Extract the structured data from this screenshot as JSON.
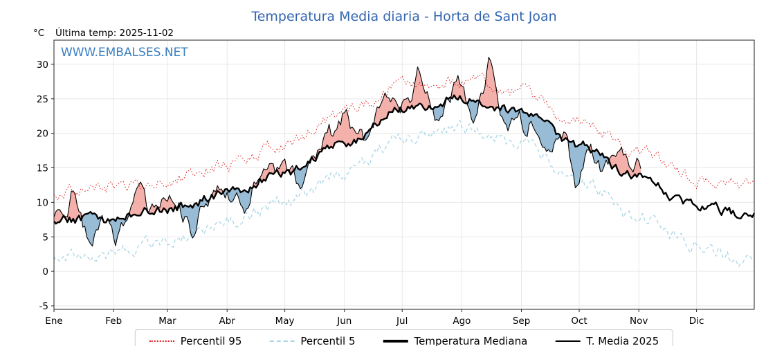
{
  "title": "Temperatura Media diaria - Horta de Sant Joan",
  "unit_label": "°C",
  "last_temp_label": "Última temp: 2025-11-02",
  "watermark": "WWW.EMBALSES.NET",
  "colors": {
    "title": "#3465b0",
    "watermark": "#3a7fc1",
    "p95": "#dd2222",
    "p5": "#a9d6e5",
    "median": "#000000",
    "t2025": "#000000",
    "fill_above": "#f3a7a1",
    "fill_below": "#8db4d2",
    "grid": "#e7e7e7",
    "axis": "#222222"
  },
  "chart_data": {
    "type": "line",
    "title": "Temperatura Media diaria - Horta de Sant Joan",
    "ylabel": "°C",
    "last_date": "2025-11-02",
    "ylim": [
      -5.5,
      33.5
    ],
    "yticks": [
      -5,
      0,
      5,
      10,
      15,
      20,
      25,
      30
    ],
    "ytick_labels": [
      "-5",
      "0",
      "5",
      "10",
      "15",
      "20",
      "25",
      "30"
    ],
    "x_tick_labels": [
      "Ene",
      "Feb",
      "Mar",
      "Abr",
      "May",
      "Jun",
      "Jul",
      "Ago",
      "Sep",
      "Oct",
      "Nov",
      "Dic"
    ],
    "month_start_days": [
      0,
      31,
      59,
      90,
      120,
      151,
      181,
      212,
      243,
      273,
      304,
      334,
      365
    ],
    "legend": [
      "Percentil 95",
      "Percentil 5",
      "Temperatura Mediana",
      "T. Media 2025"
    ],
    "legend_position": "bottom-center",
    "grid": true,
    "series": [
      {
        "name": "Percentil 95",
        "style": "dotted",
        "monthly_anchors": [
          11.5,
          12.0,
          13.3,
          15.3,
          18.3,
          22.8,
          27.0,
          27.6,
          26.2,
          22.0,
          17.3,
          13.3,
          12.3
        ],
        "noise_amp": 0.8,
        "noise_seed": 11
      },
      {
        "name": "Percentil 5",
        "style": "dashed",
        "monthly_anchors": [
          2.0,
          2.8,
          4.5,
          7.0,
          10.0,
          14.2,
          19.3,
          21.0,
          18.3,
          13.0,
          8.0,
          3.8,
          1.0
        ],
        "noise_amp": 0.8,
        "noise_seed": 22
      },
      {
        "name": "Temperatura Mediana",
        "style": "solid-thick",
        "monthly_anchors": [
          7.5,
          7.6,
          9.0,
          11.2,
          14.2,
          18.5,
          23.3,
          25.0,
          23.2,
          18.2,
          13.5,
          9.3,
          8.0
        ],
        "noise_amp": 0.6,
        "noise_seed": 33
      },
      {
        "name": "T. Media 2025",
        "style": "solid-thin",
        "end_day": 306,
        "monthly_anchors": [
          7.5,
          7.8,
          9.2,
          11.0,
          14.5,
          19.5,
          24.5,
          25.5,
          22.8,
          17.5,
          14.8,
          9.3,
          8.0
        ],
        "noise_amp": 1.1,
        "noise_seed": 44,
        "anomalies": [
          {
            "day": 10,
            "amp": 4.5,
            "width": 3
          },
          {
            "day": 19,
            "amp": -3.5,
            "width": 4
          },
          {
            "day": 33,
            "amp": -3.0,
            "width": 3
          },
          {
            "day": 44,
            "amp": 3.5,
            "width": 3
          },
          {
            "day": 58,
            "amp": 2.5,
            "width": 3
          },
          {
            "day": 72,
            "amp": -4.5,
            "width": 4
          },
          {
            "day": 85,
            "amp": 2.0,
            "width": 3
          },
          {
            "day": 100,
            "amp": -2.0,
            "width": 3
          },
          {
            "day": 112,
            "amp": 2.5,
            "width": 3
          },
          {
            "day": 128,
            "amp": -2.5,
            "width": 4
          },
          {
            "day": 142,
            "amp": 2.0,
            "width": 3
          },
          {
            "day": 152,
            "amp": 4.5,
            "width": 3
          },
          {
            "day": 163,
            "amp": -2.0,
            "width": 2.5
          },
          {
            "day": 172,
            "amp": 3.0,
            "width": 4
          },
          {
            "day": 190,
            "amp": 5.0,
            "width": 3.5
          },
          {
            "day": 200,
            "amp": -4.0,
            "width": 3
          },
          {
            "day": 210,
            "amp": 2.0,
            "width": 3
          },
          {
            "day": 218,
            "amp": -3.5,
            "width": 3
          },
          {
            "day": 227,
            "amp": 5.5,
            "width": 3
          },
          {
            "day": 236,
            "amp": -2.5,
            "width": 3
          },
          {
            "day": 245,
            "amp": -1.5,
            "width": 3
          },
          {
            "day": 256,
            "amp": -3.0,
            "width": 3.5
          },
          {
            "day": 265,
            "amp": 2.0,
            "width": 2.5
          },
          {
            "day": 272,
            "amp": -5.0,
            "width": 4
          },
          {
            "day": 286,
            "amp": -2.0,
            "width": 3
          },
          {
            "day": 297,
            "amp": 1.5,
            "width": 3
          },
          {
            "day": 304,
            "amp": 1.5,
            "width": 2
          }
        ]
      }
    ]
  }
}
